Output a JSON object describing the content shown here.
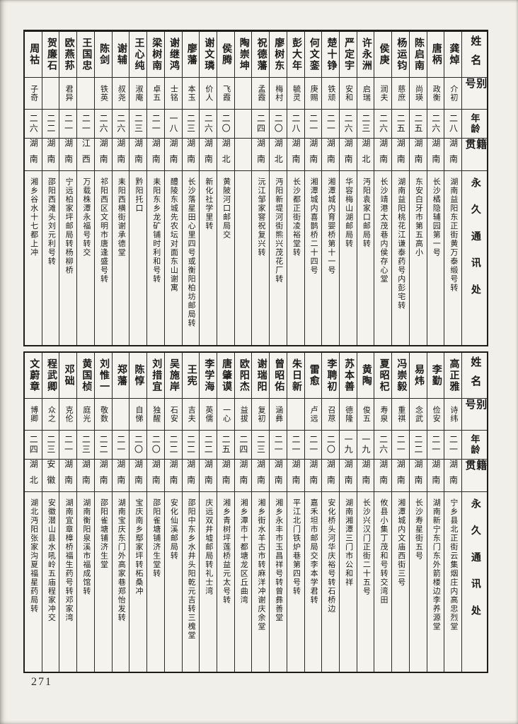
{
  "page": {
    "number": "271"
  },
  "headers": {
    "name": "姓名",
    "alias": "别号",
    "age": "年龄",
    "native": "籍贯",
    "address": "永久通讯处"
  },
  "table_top": {
    "people": [
      {
        "name": "龚焯",
        "alias": "介初",
        "age": "二八",
        "native": "湖南",
        "address": "湖南益阳东正街黄万泰缎号转"
      },
      {
        "name": "唐柄",
        "alias": "政衡",
        "age": "二六",
        "native": "湖南",
        "address": "长沙橘隐辅园第一号"
      },
      {
        "name": "陈启南",
        "alias": "尚瑛",
        "age": "二五",
        "native": "湖南",
        "address": "东安白牙市第五高小"
      },
      {
        "name": "杨运钧",
        "alias": "慈庶",
        "age": "二五",
        "native": "湖南",
        "address": "湖南益阳桃花江谦泰药号内彭宅转"
      },
      {
        "name": "侯庚",
        "alias": "润夫",
        "age": "二六",
        "native": "湖南",
        "address": "长沙靖港太茂巷内侯存心堂"
      },
      {
        "name": "许永洲",
        "alias": "启瑞",
        "age": "二三",
        "native": "湖北",
        "address": "沔阳袁家口邮局转"
      },
      {
        "name": "严定宇",
        "alias": "安和",
        "age": "二六",
        "native": "湖南",
        "address": "华容梅山湖邮局转"
      },
      {
        "name": "楚十铮",
        "alias": "铁顽",
        "age": "二一",
        "native": "湖南",
        "address": "湘潭城内育婴桥第十一号"
      },
      {
        "name": "何文銮",
        "alias": "庚赐",
        "age": "二一",
        "native": "湖南",
        "address": "湘潭城内喜鹊桥二十四号"
      },
      {
        "name": "彭大年",
        "alias": "毓灵",
        "age": "二八",
        "native": "湖南",
        "address": "长沙都正街凌裕堂转"
      },
      {
        "name": "廖树东",
        "alias": "梅村",
        "age": "二〇",
        "native": "湖北",
        "address": "沔阳新堤河街熊兴茂花厂转"
      },
      {
        "name": "祝德藩",
        "alias": "孟霞",
        "age": "二四",
        "native": "湖南",
        "address": "沅江邹家窨祝复兴转"
      },
      {
        "name": "陶崇坤",
        "alias": "",
        "age": "",
        "native": "",
        "address": ""
      },
      {
        "name": "侯腾",
        "alias": "飞霞",
        "age": "二〇",
        "native": "湖北",
        "address": "黄陂河口邮局交"
      },
      {
        "name": "谢文璘",
        "alias": "价人",
        "age": "二六",
        "native": "湖南",
        "address": "新化社学里转"
      },
      {
        "name": "廖藩",
        "alias": "本玉",
        "age": "二三",
        "native": "湖南",
        "address": "长沙落星田心里四号或衡阳柏坊邮局转"
      },
      {
        "name": "谢继鸿",
        "alias": "士铭",
        "age": "一八",
        "native": "湖南",
        "address": "醴陵东城先农坛对面东山谢寓"
      },
      {
        "name": "梁树南",
        "alias": "卓五",
        "age": "二一",
        "native": "湖南",
        "address": "耒阳东乡龙矿铺时利和号转"
      },
      {
        "name": "王心纯",
        "alias": "淑庵",
        "age": "二三",
        "native": "湖南",
        "address": "黔阳托口"
      },
      {
        "name": "谢辅",
        "alias": "叔尧",
        "age": "二六",
        "native": "湖南",
        "address": "耒阳西横街谢承德堂"
      },
      {
        "name": "陈剑",
        "alias": "铁英",
        "age": "二六",
        "native": "湖南",
        "address": "祁阳西区文明市唐逢盛号转"
      },
      {
        "name": "王国忠",
        "alias": "",
        "age": "二一",
        "native": "江西",
        "address": "万载株潭永福号转交"
      },
      {
        "name": "欧燕荪",
        "alias": "君异",
        "age": "二一",
        "native": "湖南",
        "address": "宁远柏家坪邮局转杨柳桥"
      },
      {
        "name": "贺廉石",
        "alias": "",
        "age": "二二",
        "native": "湖南",
        "address": "邵阳西滩头刘元利号转"
      },
      {
        "name": "周祜",
        "alias": "子奇",
        "age": "二六",
        "native": "湖南",
        "address": "湘乡谷水十七都上冲"
      }
    ]
  },
  "table_bottom": {
    "people": [
      {
        "name": "高正雅",
        "alias": "诗纬",
        "age": "二一",
        "native": "湖南",
        "address": "宁乡县北正街云集烟庄内高忠烈堂"
      },
      {
        "name": "李勤",
        "alias": "俭安",
        "age": "二一",
        "native": "湖南",
        "address": "湖南新宁东门东外箭楼边李养源堂"
      },
      {
        "name": "易炜",
        "alias": "念武",
        "age": "二二",
        "native": "湖南",
        "address": "长沙寿星街五号"
      },
      {
        "name": "冯崇毅",
        "alias": "重祺",
        "age": "二一",
        "native": "湖南",
        "address": "湘潭城内文庙西街三号"
      },
      {
        "name": "夏昭杞",
        "alias": "寿泉",
        "age": "二六",
        "native": "湖南",
        "address": "攸县小集丁茂和号转交湾田"
      },
      {
        "name": "黄陶",
        "alias": "俊五",
        "age": "一九",
        "native": "湖南",
        "address": "长沙兴汉门正街二十五号"
      },
      {
        "name": "苏本善",
        "alias": "德隆",
        "age": "一九",
        "native": "湖南",
        "address": "湖南湘潭三门市公和祥"
      },
      {
        "name": "李聘初",
        "alias": "召荩",
        "age": "二〇",
        "native": "湖南",
        "address": "安化桥头河华庆裕号转石桥边"
      },
      {
        "name": "雷愈",
        "alias": "卢远",
        "age": "二一",
        "native": "湖南",
        "address": "嘉禾坦市邮局交李本学君转"
      },
      {
        "name": "朱日新",
        "alias": "",
        "age": "二一",
        "native": "湖南",
        "address": "平江北门铁炉巷第四号转"
      },
      {
        "name": "曾昭佑",
        "alias": "涵彝",
        "age": "二一",
        "native": "湖南",
        "address": "湘乡永丰市玉昌祥号转曾彝善堂"
      },
      {
        "name": "谢瑞阳",
        "alias": "复初",
        "age": "二三",
        "native": "湖南",
        "address": "湘乡街水羊古市转麻洋冲谢庆余堂"
      },
      {
        "name": "欧阳杰",
        "alias": "益拔",
        "age": "二四",
        "native": "湖南",
        "address": "湘乡潭市十都塘龙区丘曲湾"
      },
      {
        "name": "唐肇谟",
        "alias": "一心",
        "age": "二五",
        "native": "湖南",
        "address": "湘乡青树坪莲桥益元太号转"
      },
      {
        "name": "李学海",
        "alias": "英儒",
        "age": "二二",
        "native": "湖南",
        "address": "庆远双井墟邮局转礼士湾"
      },
      {
        "name": "王宪",
        "alias": "吉夫",
        "age": "二二",
        "native": "湖南",
        "address": "邵阳中东乡水井头阳乾元吉转三槐堂"
      },
      {
        "name": "吴施岸",
        "alias": "石安",
        "age": "二二",
        "native": "湖南",
        "address": "安化仙溪邮局转"
      },
      {
        "name": "刘措宜",
        "alias": "独醒",
        "age": "二〇",
        "native": "湖南",
        "address": "邵阳雀塘铺济生堂转"
      },
      {
        "name": "陈惇",
        "alias": "自悌",
        "age": "二〇",
        "native": "湖南",
        "address": "宝庆南乡鄢家坪转柘桑冲"
      },
      {
        "name": "郑藩",
        "alias": "",
        "age": "二一",
        "native": "湖南",
        "address": "湖南宝庆东门外高家巷郑怡发转"
      },
      {
        "name": "刘惟一",
        "alias": "敬数",
        "age": "二二",
        "native": "湖南",
        "address": "邵阳雀塘铺济生堂"
      },
      {
        "name": "黄国桢",
        "alias": "庭光",
        "age": "二三",
        "native": "湖南",
        "address": "湖南衡阳泉溪市福成馆转"
      },
      {
        "name": "邓础",
        "alias": "克伦",
        "age": "二一",
        "native": "湖南",
        "address": "湖南宜章樟桥福生药号转邓家湾"
      },
      {
        "name": "程武卿",
        "alias": "众之",
        "age": "二三",
        "native": "安徽",
        "address": "安徽潜山县水吼岭五庙程家冲交"
      },
      {
        "name": "文蔚章",
        "alias": "博卿",
        "age": "二四",
        "native": "湖北",
        "address": "湖北沔阳张家沟夏福星药局转"
      }
    ]
  }
}
